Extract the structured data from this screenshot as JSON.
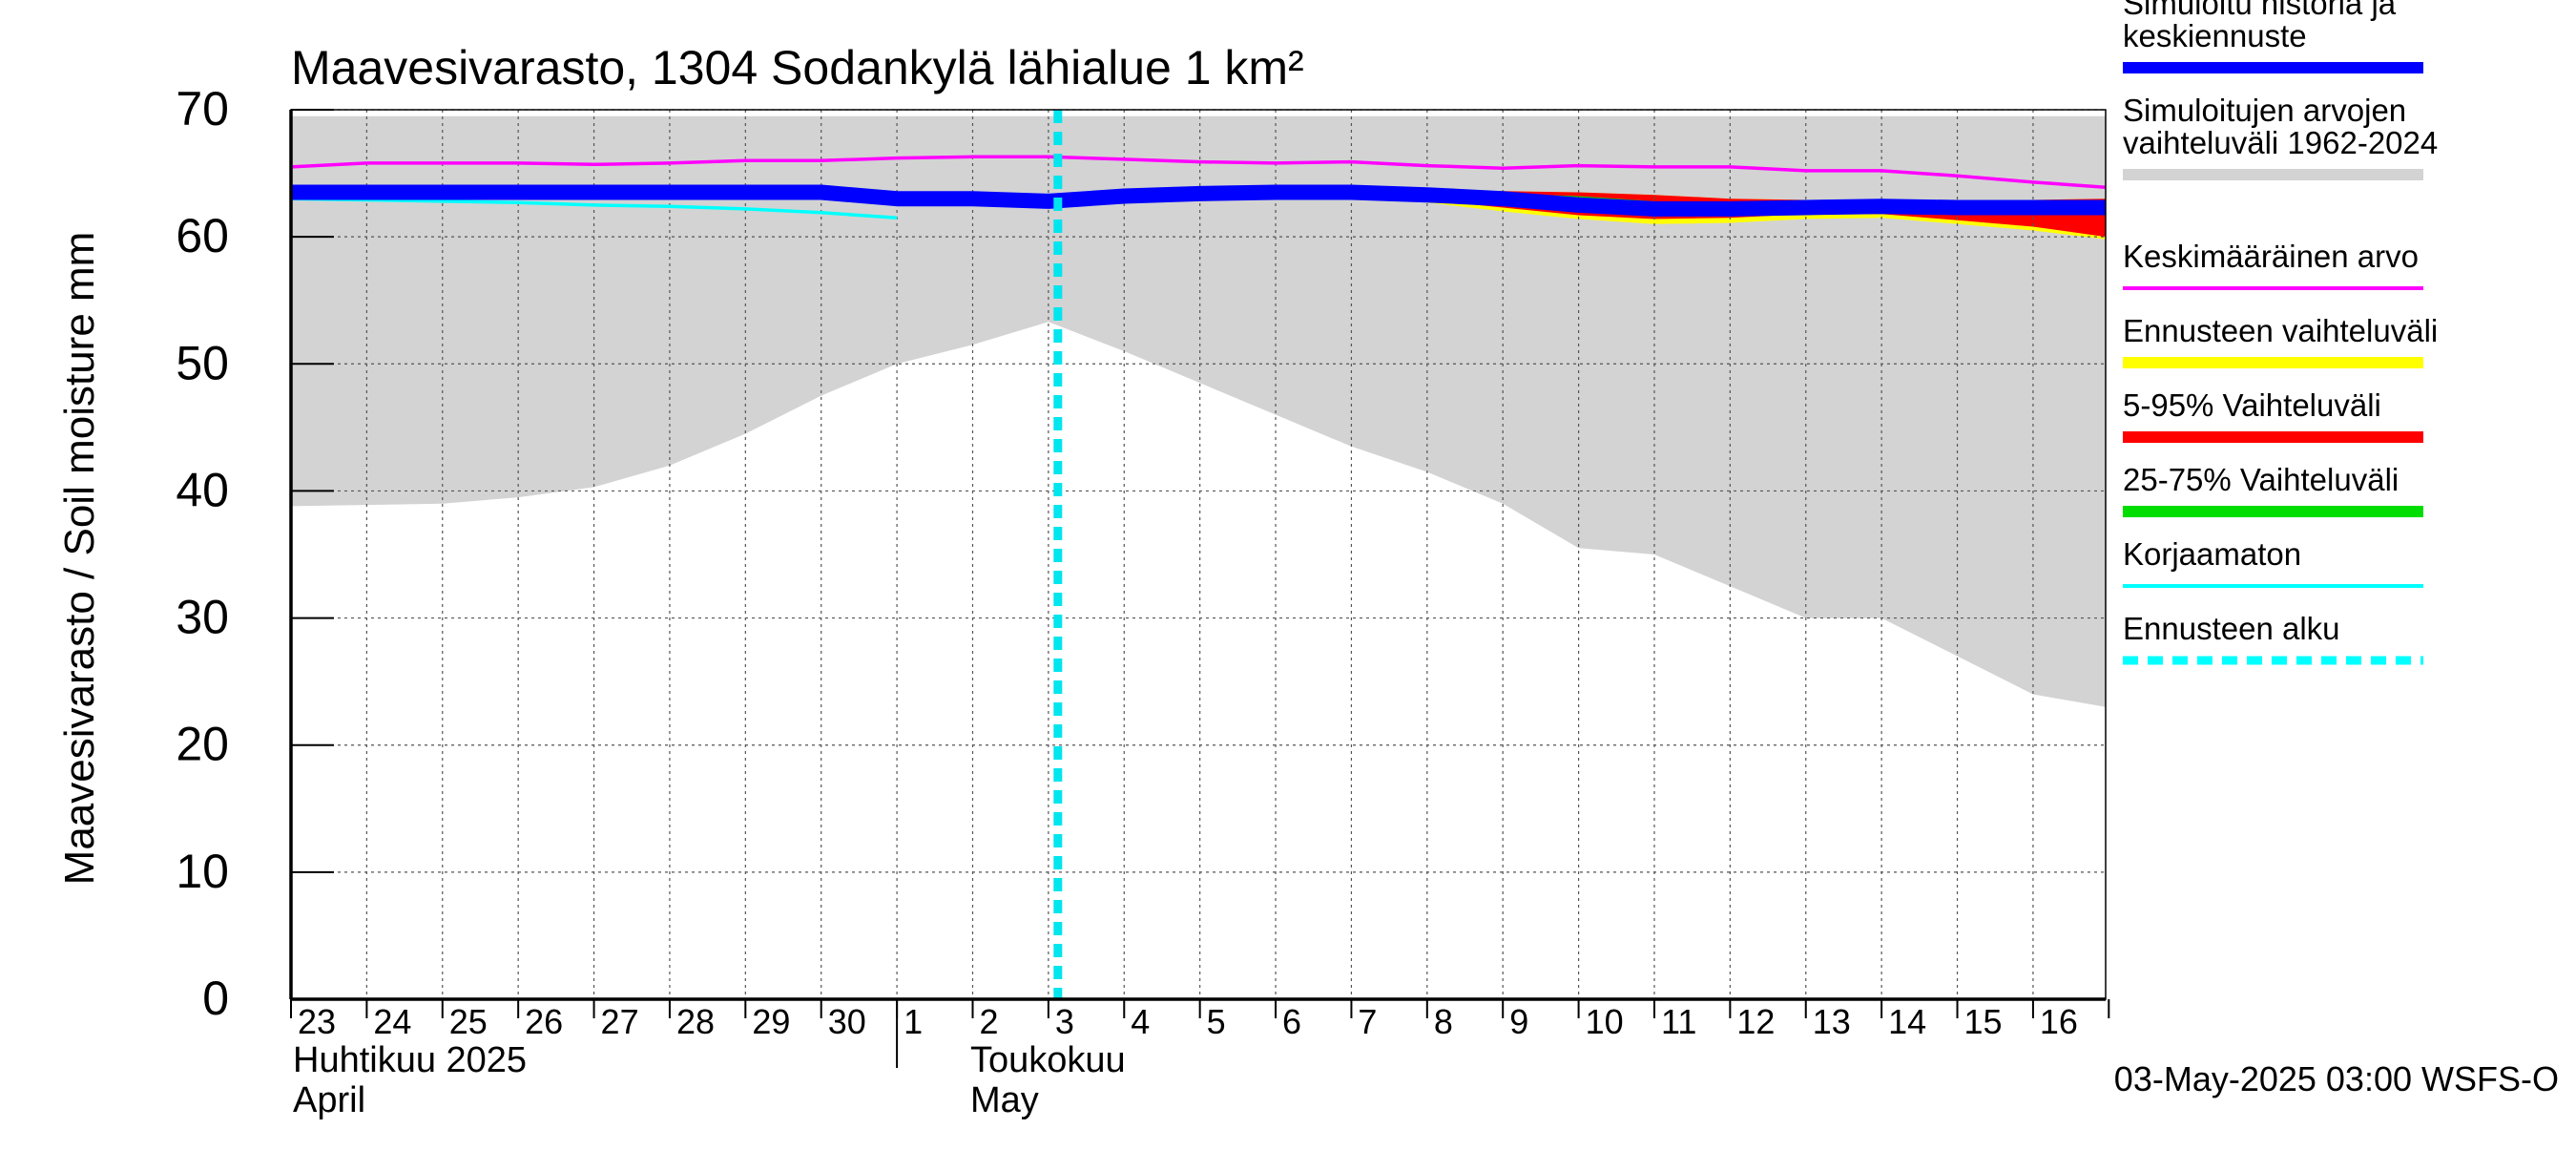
{
  "chart_data": {
    "type": "area",
    "title": "Maavesivarasto, 1304 Sodankylä lähialue 1 km²",
    "ylabel": "Maavesivarasto / Soil moisture   mm",
    "ylim": [
      0,
      70
    ],
    "yticks": [
      "0",
      "10",
      "20",
      "30",
      "40",
      "50",
      "60",
      "70"
    ],
    "xlim": [
      "2025-04-23",
      "2025-05-16T23:00"
    ],
    "xticks": [
      "23",
      "24",
      "25",
      "26",
      "27",
      "28",
      "29",
      "30",
      "1",
      "2",
      "3",
      "4",
      "5",
      "6",
      "7",
      "8",
      "9",
      "10",
      "11",
      "12",
      "13",
      "14",
      "15",
      "16"
    ],
    "x_axis": {
      "month1_fi": "Huhtikuu  2025",
      "month1_en": "April",
      "month2_fi": "Toukokuu",
      "month2_en": "May"
    },
    "grid": true,
    "legend_position": "right",
    "forecast_start": "2025-05-03T03:00",
    "timestamp": "03-May-2025 03:00 WSFS-O",
    "legend": [
      {
        "label": "Simuloitu historia ja keskiennuste",
        "color": "#0000ff",
        "style": "thick"
      },
      {
        "label": "Simuloitujen arvojen vaihteluväli 1962-2024",
        "color": "#d3d3d3",
        "style": "thick"
      },
      {
        "label": "Keskimääräinen arvo",
        "color": "#ff00ff",
        "style": "thin"
      },
      {
        "label": "Ennusteen vaihteluväli",
        "color": "#ffff00",
        "style": "thick"
      },
      {
        "label": "5-95% Vaihteluväli",
        "color": "#ff0000",
        "style": "thick"
      },
      {
        "label": "25-75% Vaihteluväli",
        "color": "#00dd00",
        "style": "thick"
      },
      {
        "label": "Korjaamaton",
        "color": "#00ffff",
        "style": "thin"
      },
      {
        "label": "Ennusteen alku",
        "color": "#00ffff",
        "style": "dashed"
      }
    ],
    "historical_range": {
      "dates": [
        "2025-04-23",
        "2025-04-24",
        "2025-04-25",
        "2025-04-26",
        "2025-04-27",
        "2025-04-28",
        "2025-04-29",
        "2025-04-30",
        "2025-05-01",
        "2025-05-02",
        "2025-05-03",
        "2025-05-04",
        "2025-05-05",
        "2025-05-06",
        "2025-05-07",
        "2025-05-08",
        "2025-05-09",
        "2025-05-10",
        "2025-05-11",
        "2025-05-12",
        "2025-05-13",
        "2025-05-14",
        "2025-05-15",
        "2025-05-16",
        "2025-05-16T23:00"
      ],
      "min": [
        38.8,
        38.9,
        39.0,
        39.5,
        40.3,
        42.0,
        44.5,
        47.5,
        50.0,
        51.5,
        53.3,
        51.0,
        48.5,
        46.0,
        43.5,
        41.5,
        39.0,
        35.5,
        35.0,
        32.5,
        30.0,
        30.0,
        27.0,
        24.0,
        23.0
      ],
      "max": [
        69.5,
        69.5,
        69.5,
        69.5,
        69.5,
        69.5,
        69.5,
        69.5,
        69.5,
        69.5,
        69.5,
        69.5,
        69.5,
        69.5,
        69.5,
        69.5,
        69.5,
        69.5,
        69.5,
        69.5,
        69.5,
        69.5,
        69.5,
        69.5,
        69.5
      ]
    },
    "series": [
      {
        "name": "Keskimääräinen arvo",
        "color": "#ff00ff",
        "dates": [
          "2025-04-23",
          "2025-04-24",
          "2025-04-25",
          "2025-04-26",
          "2025-04-27",
          "2025-04-28",
          "2025-04-29",
          "2025-04-30",
          "2025-05-01",
          "2025-05-02",
          "2025-05-03",
          "2025-05-04",
          "2025-05-05",
          "2025-05-06",
          "2025-05-07",
          "2025-05-08",
          "2025-05-09",
          "2025-05-10",
          "2025-05-11",
          "2025-05-12",
          "2025-05-13",
          "2025-05-14",
          "2025-05-15",
          "2025-05-16",
          "2025-05-16T23:00"
        ],
        "values": [
          65.5,
          65.8,
          65.8,
          65.8,
          65.7,
          65.8,
          66.0,
          66.0,
          66.2,
          66.3,
          66.3,
          66.1,
          65.9,
          65.8,
          65.9,
          65.6,
          65.4,
          65.6,
          65.5,
          65.5,
          65.2,
          65.2,
          64.8,
          64.3,
          63.9
        ]
      },
      {
        "name": "Korjaamaton",
        "color": "#00ffff",
        "dates": [
          "2025-04-23",
          "2025-04-24",
          "2025-04-25",
          "2025-04-26",
          "2025-04-27",
          "2025-04-28",
          "2025-04-29",
          "2025-04-30",
          "2025-05-01"
        ],
        "values": [
          63.0,
          62.9,
          62.8,
          62.7,
          62.5,
          62.4,
          62.2,
          61.9,
          61.5
        ]
      },
      {
        "name": "Simuloitu historia ja keskiennuste",
        "color": "#0000ff",
        "dates": [
          "2025-04-23",
          "2025-04-24",
          "2025-04-25",
          "2025-04-26",
          "2025-04-27",
          "2025-04-28",
          "2025-04-29",
          "2025-04-30",
          "2025-05-01",
          "2025-05-02",
          "2025-05-03",
          "2025-05-04",
          "2025-05-05",
          "2025-05-06",
          "2025-05-07",
          "2025-05-08",
          "2025-05-09",
          "2025-05-10",
          "2025-05-11",
          "2025-05-12",
          "2025-05-13",
          "2025-05-14",
          "2025-05-15",
          "2025-05-16",
          "2025-05-16T23:00"
        ],
        "values": [
          63.5,
          63.5,
          63.5,
          63.5,
          63.5,
          63.5,
          63.5,
          63.5,
          63.0,
          63.0,
          62.8,
          63.2,
          63.4,
          63.5,
          63.5,
          63.3,
          63.0,
          62.5,
          62.2,
          62.2,
          62.3,
          62.4,
          62.3,
          62.3,
          62.3
        ]
      }
    ],
    "forecast_bands": {
      "dates": [
        "2025-05-03T03:00",
        "2025-05-04",
        "2025-05-05",
        "2025-05-06",
        "2025-05-07",
        "2025-05-08",
        "2025-05-09",
        "2025-05-10",
        "2025-05-11",
        "2025-05-12",
        "2025-05-13",
        "2025-05-14",
        "2025-05-15",
        "2025-05-16",
        "2025-05-16T23:00"
      ],
      "full_range": {
        "lower": [
          62.8,
          63.2,
          63.4,
          63.5,
          63.4,
          62.7,
          62.0,
          61.4,
          61.0,
          61.1,
          61.4,
          61.5,
          61.0,
          60.5,
          59.8
        ],
        "upper": [
          62.8,
          63.2,
          63.4,
          63.5,
          63.6,
          63.6,
          63.6,
          63.5,
          63.3,
          63.0,
          62.9,
          62.9,
          62.9,
          62.9,
          63.0
        ]
      },
      "p5_95": {
        "lower": [
          62.8,
          63.2,
          63.4,
          63.5,
          63.4,
          62.9,
          62.3,
          61.7,
          61.4,
          61.5,
          61.8,
          61.8,
          61.3,
          60.8,
          60.0
        ]
      },
      "p25_75": {
        "lower": [
          62.8,
          63.2,
          63.4,
          63.5,
          63.5,
          63.2,
          62.8,
          62.2,
          61.9,
          61.9,
          62.1,
          62.1,
          62.0,
          62.0,
          62.0
        ],
        "upper": [
          62.8,
          63.2,
          63.4,
          63.5,
          63.5,
          63.4,
          63.4,
          63.2,
          62.8,
          62.6,
          62.5,
          62.5,
          62.5,
          62.5,
          62.6
        ]
      }
    }
  }
}
